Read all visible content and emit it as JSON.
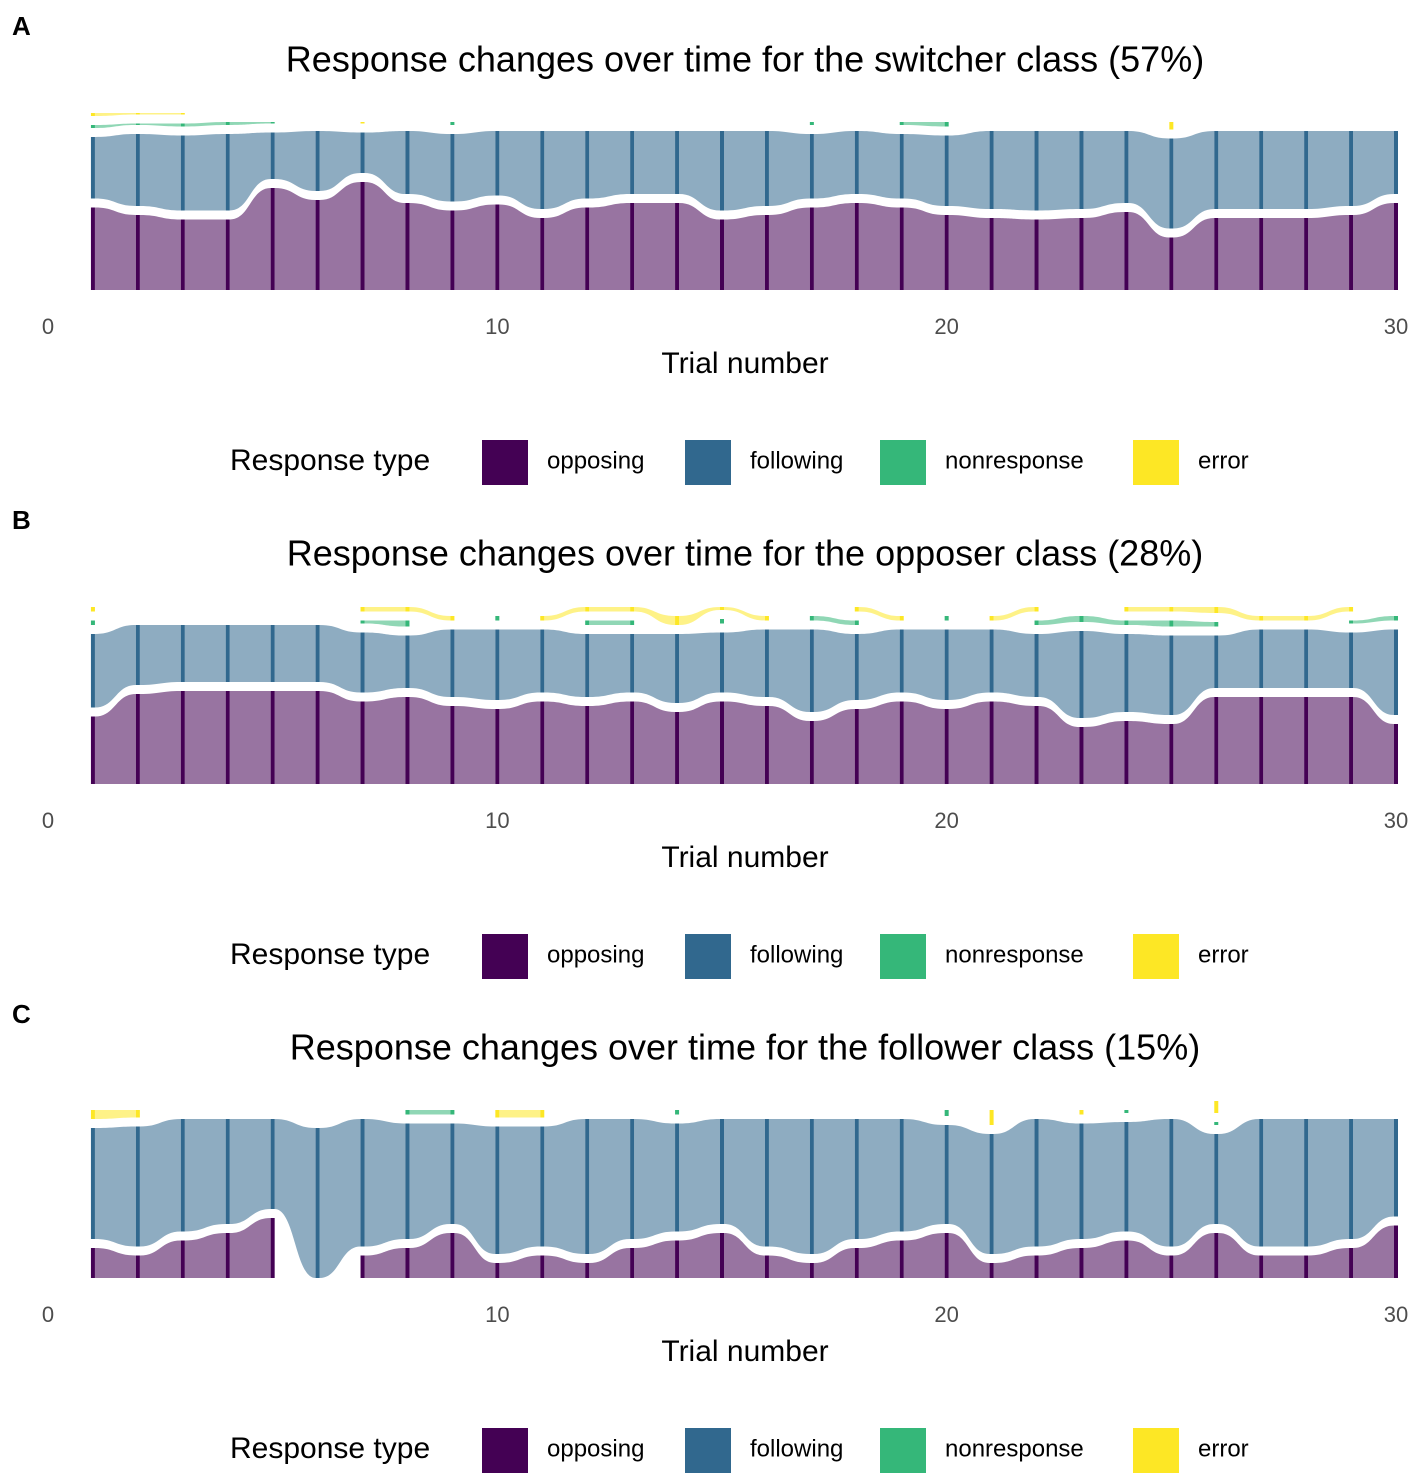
{
  "chart_data": [
    {
      "type": "alluvial",
      "panel": "A",
      "title": "Response changes over time for the switcher class (57%)",
      "x_label": "Trial number",
      "legend_title": "Response type",
      "xlim": [
        0,
        30
      ],
      "xticks": [
        0,
        10,
        20,
        30
      ],
      "x": [
        1,
        2,
        3,
        4,
        5,
        6,
        7,
        8,
        9,
        10,
        11,
        12,
        13,
        14,
        15,
        16,
        17,
        18,
        19,
        20,
        21,
        22,
        23,
        24,
        25,
        26,
        27,
        28,
        29,
        30
      ],
      "series": [
        {
          "name": "opposing",
          "color": "#440154",
          "values": [
            55,
            50,
            47,
            47,
            68,
            60,
            72,
            58,
            53,
            57,
            48,
            55,
            58,
            58,
            47,
            50,
            55,
            58,
            55,
            50,
            48,
            47,
            48,
            52,
            35,
            48,
            48,
            48,
            50,
            58
          ]
        },
        {
          "name": "following",
          "color": "#31688e",
          "values": [
            41,
            48,
            50,
            51,
            31,
            40,
            27,
            42,
            45,
            43,
            52,
            45,
            42,
            42,
            53,
            50,
            43,
            42,
            43,
            47,
            52,
            53,
            52,
            48,
            60,
            52,
            52,
            52,
            50,
            42
          ]
        },
        {
          "name": "nonresponse",
          "color": "#35b779",
          "values": [
            2,
            1,
            2,
            2,
            1,
            0,
            0,
            0,
            2,
            0,
            0,
            0,
            0,
            0,
            0,
            0,
            2,
            0,
            2,
            3,
            0,
            0,
            0,
            0,
            0,
            0,
            0,
            0,
            0,
            0
          ]
        },
        {
          "name": "error",
          "color": "#fde725",
          "values": [
            2,
            1,
            1,
            0,
            0,
            0,
            1,
            0,
            0,
            0,
            0,
            0,
            0,
            0,
            0,
            0,
            0,
            0,
            0,
            0,
            0,
            0,
            0,
            0,
            5,
            0,
            0,
            0,
            0,
            0
          ]
        }
      ]
    },
    {
      "type": "alluvial",
      "panel": "B",
      "title": "Response changes over time for the opposer class (28%)",
      "x_label": "Trial number",
      "legend_title": "Response type",
      "xlim": [
        0,
        30
      ],
      "xticks": [
        0,
        10,
        20,
        30
      ],
      "x": [
        1,
        2,
        3,
        4,
        5,
        6,
        7,
        8,
        9,
        10,
        11,
        12,
        13,
        14,
        15,
        16,
        17,
        18,
        19,
        20,
        21,
        22,
        23,
        24,
        25,
        26,
        27,
        28,
        29,
        30
      ],
      "series": [
        {
          "name": "opposing",
          "color": "#440154",
          "values": [
            45,
            60,
            62,
            62,
            62,
            62,
            55,
            58,
            52,
            50,
            55,
            52,
            55,
            48,
            55,
            52,
            42,
            50,
            55,
            50,
            55,
            52,
            38,
            42,
            40,
            58,
            58,
            58,
            58,
            40
          ]
        },
        {
          "name": "following",
          "color": "#31688e",
          "values": [
            49,
            40,
            38,
            38,
            38,
            38,
            40,
            35,
            45,
            47,
            42,
            42,
            39,
            46,
            40,
            45,
            55,
            44,
            42,
            47,
            42,
            42,
            58,
            52,
            53,
            35,
            39,
            39,
            37,
            57
          ]
        },
        {
          "name": "nonresponse",
          "color": "#35b779",
          "values": [
            3,
            0,
            0,
            0,
            0,
            0,
            2,
            4,
            0,
            3,
            0,
            3,
            3,
            0,
            3,
            0,
            3,
            3,
            0,
            3,
            0,
            3,
            4,
            3,
            4,
            3,
            0,
            0,
            2,
            3
          ]
        },
        {
          "name": "error",
          "color": "#fde725",
          "values": [
            3,
            0,
            0,
            0,
            0,
            0,
            3,
            3,
            3,
            0,
            3,
            3,
            3,
            6,
            2,
            3,
            0,
            3,
            3,
            0,
            3,
            3,
            0,
            3,
            3,
            4,
            3,
            3,
            3,
            0
          ]
        }
      ]
    },
    {
      "type": "alluvial",
      "panel": "C",
      "title": "Response changes over time for the follower class (15%)",
      "x_label": "Trial number",
      "legend_title": "Response type",
      "xlim": [
        0,
        30
      ],
      "xticks": [
        0,
        10,
        20,
        30
      ],
      "x": [
        1,
        2,
        3,
        4,
        5,
        6,
        7,
        8,
        9,
        10,
        11,
        12,
        13,
        14,
        15,
        16,
        17,
        18,
        19,
        20,
        21,
        22,
        23,
        24,
        25,
        26,
        27,
        28,
        29,
        30
      ],
      "series": [
        {
          "name": "opposing",
          "color": "#440154",
          "values": [
            20,
            15,
            25,
            30,
            40,
            0,
            15,
            20,
            30,
            10,
            15,
            10,
            20,
            25,
            30,
            15,
            10,
            20,
            25,
            30,
            10,
            15,
            20,
            25,
            15,
            30,
            15,
            15,
            20,
            35
          ]
        },
        {
          "name": "following",
          "color": "#31688e",
          "values": [
            74,
            80,
            75,
            70,
            60,
            100,
            85,
            77,
            67,
            85,
            80,
            90,
            80,
            72,
            70,
            85,
            90,
            80,
            75,
            66,
            80,
            85,
            77,
            73,
            85,
            60,
            85,
            85,
            80,
            65
          ]
        },
        {
          "name": "nonresponse",
          "color": "#35b779",
          "values": [
            0,
            0,
            0,
            0,
            0,
            0,
            0,
            3,
            3,
            0,
            0,
            0,
            0,
            3,
            0,
            0,
            0,
            0,
            0,
            4,
            0,
            0,
            0,
            2,
            0,
            2,
            0,
            0,
            0,
            0
          ]
        },
        {
          "name": "error",
          "color": "#fde725",
          "values": [
            6,
            5,
            0,
            0,
            0,
            0,
            0,
            0,
            0,
            5,
            5,
            0,
            0,
            0,
            0,
            0,
            0,
            0,
            0,
            0,
            10,
            0,
            3,
            0,
            0,
            8,
            0,
            0,
            0,
            0
          ]
        }
      ]
    }
  ]
}
